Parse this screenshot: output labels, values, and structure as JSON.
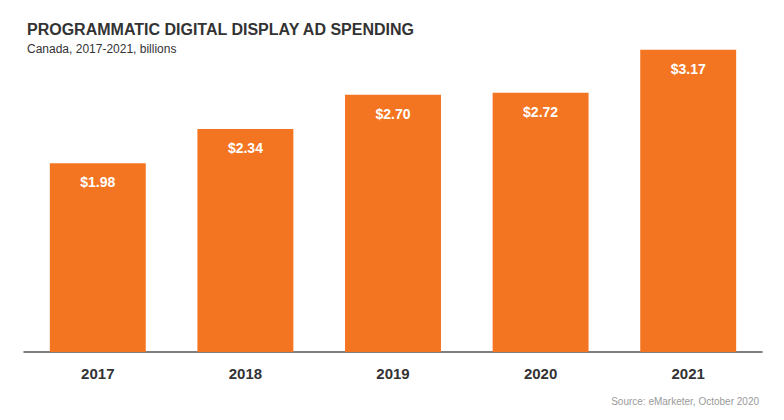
{
  "chart_data": {
    "type": "bar",
    "title": "PROGRAMMATIC DIGITAL DISPLAY AD SPENDING",
    "subtitle": "Canada, 2017-2021, billions",
    "source": "Source: eMarketer, October 2020",
    "categories": [
      "2017",
      "2018",
      "2019",
      "2020",
      "2021"
    ],
    "values": [
      1.98,
      2.34,
      2.7,
      2.72,
      3.17
    ],
    "value_labels": [
      "$1.98",
      "$2.34",
      "$2.70",
      "$2.72",
      "$3.17"
    ],
    "color": "#f47521",
    "ylim": [
      0,
      3.2
    ],
    "yticks": [
      0,
      3.2
    ],
    "grid": false,
    "data_labels": true,
    "tick_labels": "x"
  }
}
